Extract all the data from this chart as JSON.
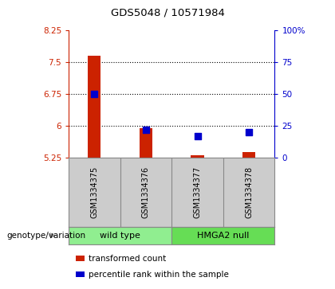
{
  "title": "GDS5048 / 10571984",
  "samples": [
    "GSM1334375",
    "GSM1334376",
    "GSM1334377",
    "GSM1334378"
  ],
  "transformed_counts": [
    7.65,
    5.95,
    5.3,
    5.37
  ],
  "percentile_ranks": [
    50.0,
    22.0,
    17.0,
    20.0
  ],
  "ylim_left": [
    5.25,
    8.25
  ],
  "ylim_right": [
    0,
    100
  ],
  "yticks_left": [
    5.25,
    6.0,
    6.75,
    7.5,
    8.25
  ],
  "yticks_right": [
    0,
    25,
    50,
    75,
    100
  ],
  "ytick_labels_left": [
    "5.25",
    "6",
    "6.75",
    "7.5",
    "8.25"
  ],
  "ytick_labels_right": [
    "0",
    "25",
    "50",
    "75",
    "100%"
  ],
  "groups": [
    {
      "label": "wild type",
      "indices": [
        0,
        1
      ],
      "color": "#90EE90"
    },
    {
      "label": "HMGA2 null",
      "indices": [
        2,
        3
      ],
      "color": "#66DD55"
    }
  ],
  "bar_color": "#CC2200",
  "square_color": "#0000CC",
  "bar_width": 0.25,
  "square_size": 30,
  "grid_ticks": [
    6.0,
    6.75,
    7.5
  ],
  "axis_color_left": "#CC2200",
  "axis_color_right": "#0000CC",
  "legend_items": [
    {
      "color": "#CC2200",
      "label": "transformed count"
    },
    {
      "color": "#0000CC",
      "label": "percentile rank within the sample"
    }
  ],
  "group_label": "genotype/variation",
  "sample_area_color": "#CCCCCC",
  "background_color": "#FFFFFF",
  "spine_color": "#888888"
}
